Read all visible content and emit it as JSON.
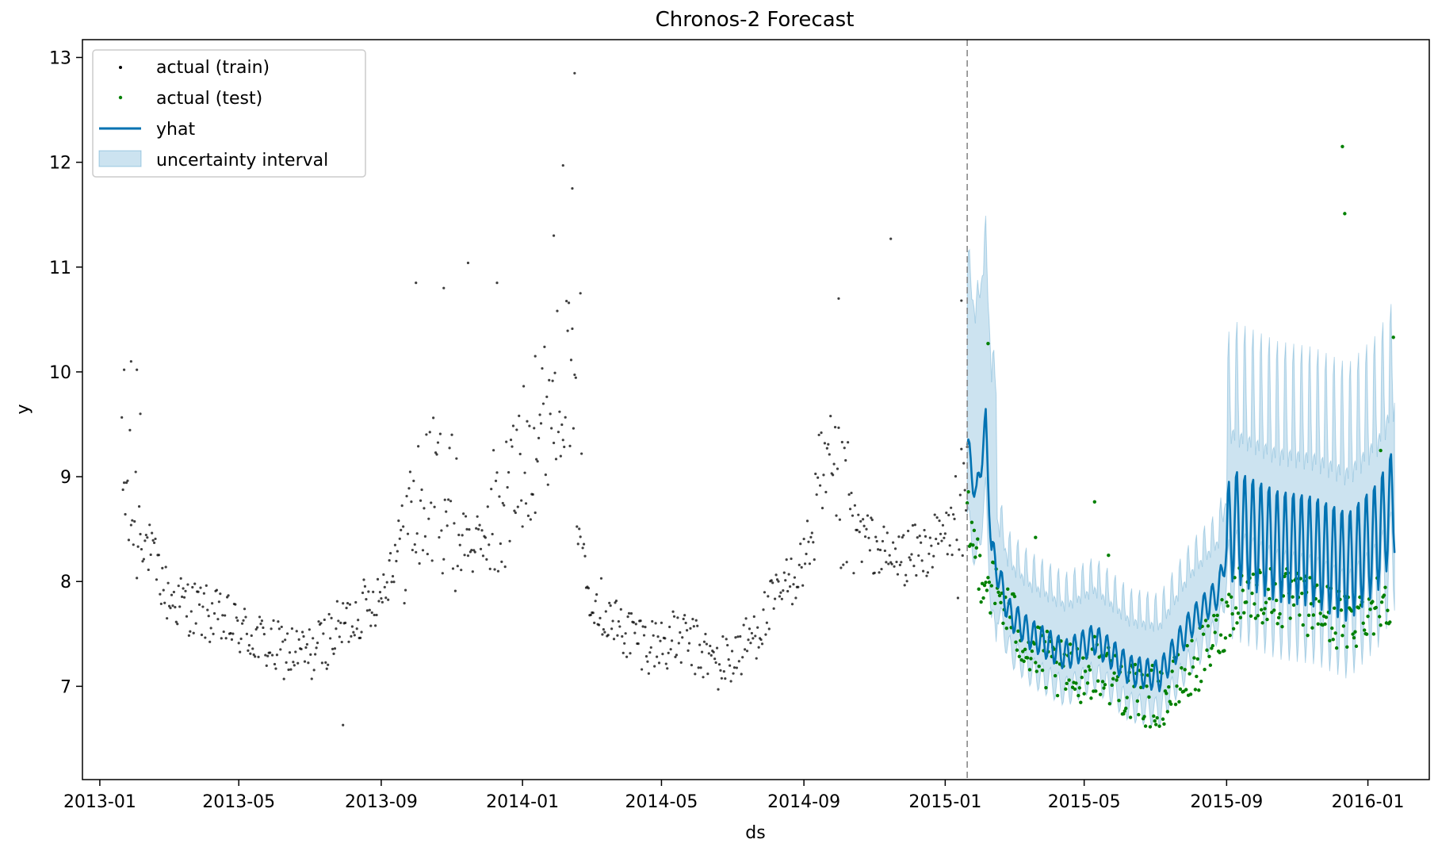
{
  "chart_data": {
    "type": "scatter",
    "title": "Chronos-2 Forecast",
    "xlabel": "ds",
    "ylabel": "y",
    "xlim": [
      "2012-12-17",
      "2016-02-23"
    ],
    "ylim": [
      6.11,
      13.17
    ],
    "x_ticks": [
      "2013-01",
      "2013-05",
      "2013-09",
      "2014-01",
      "2014-05",
      "2014-09",
      "2015-01",
      "2015-05",
      "2015-09",
      "2016-01"
    ],
    "y_ticks": [
      7,
      8,
      9,
      10,
      11,
      12,
      13
    ],
    "split_date": "2015-01-20",
    "grid": false,
    "legend_position": "upper-left",
    "legend": [
      {
        "label": "actual (train)",
        "marker": "dot",
        "color": "#000000"
      },
      {
        "label": "actual (test)",
        "marker": "dot",
        "color": "#008000"
      },
      {
        "label": "yhat",
        "marker": "line",
        "color": "#0072B2"
      },
      {
        "label": "uncertainty interval",
        "marker": "patch",
        "color": "#0072B2"
      }
    ],
    "colors": {
      "train": "#000000",
      "test": "#008000",
      "yhat": "#0072B2",
      "band": "#0072B2",
      "split_line": "#808080"
    },
    "train_anchors": [
      [
        "2013-01-20",
        8.9
      ],
      [
        "2013-02-05",
        8.5
      ],
      [
        "2013-03-01",
        7.85
      ],
      [
        "2013-04-01",
        7.7
      ],
      [
        "2013-05-01",
        7.55
      ],
      [
        "2013-06-01",
        7.35
      ],
      [
        "2013-07-01",
        7.3
      ],
      [
        "2013-08-01",
        7.6
      ],
      [
        "2013-09-01",
        7.9
      ],
      [
        "2013-09-20",
        8.5
      ],
      [
        "2013-10-20",
        8.9
      ],
      [
        "2013-11-20",
        8.3
      ],
      [
        "2013-12-15",
        8.7
      ],
      [
        "2014-01-20",
        9.6
      ],
      [
        "2014-02-10",
        10.1
      ],
      [
        "2014-02-25",
        8.0
      ],
      [
        "2014-03-20",
        7.6
      ],
      [
        "2014-04-20",
        7.4
      ],
      [
        "2014-05-20",
        7.45
      ],
      [
        "2014-06-20",
        7.2
      ],
      [
        "2014-07-10",
        7.35
      ],
      [
        "2014-08-10",
        7.85
      ],
      [
        "2014-09-01",
        8.2
      ],
      [
        "2014-09-20",
        8.9
      ],
      [
        "2014-10-15",
        8.5
      ],
      [
        "2014-11-15",
        8.2
      ],
      [
        "2014-12-15",
        8.3
      ],
      [
        "2015-01-20",
        8.6
      ]
    ],
    "train_outliers": [
      [
        "2013-01-22",
        10.02
      ],
      [
        "2013-01-28",
        10.1
      ],
      [
        "2013-02-02",
        10.02
      ],
      [
        "2013-02-05",
        9.6
      ],
      [
        "2013-07-30",
        6.63
      ],
      [
        "2013-10-01",
        10.85
      ],
      [
        "2013-10-25",
        10.8
      ],
      [
        "2013-11-15",
        11.04
      ],
      [
        "2013-12-10",
        10.85
      ],
      [
        "2014-01-12",
        10.15
      ],
      [
        "2014-01-28",
        11.3
      ],
      [
        "2014-02-05",
        11.97
      ],
      [
        "2014-02-15",
        12.85
      ],
      [
        "2014-02-13",
        11.75
      ],
      [
        "2014-02-20",
        10.75
      ],
      [
        "2014-10-01",
        10.7
      ],
      [
        "2014-11-15",
        11.27
      ],
      [
        "2015-01-15",
        10.68
      ]
    ],
    "test_anchors": [
      [
        "2015-01-20",
        8.6
      ],
      [
        "2015-02-01",
        8.1
      ],
      [
        "2015-02-20",
        7.8
      ],
      [
        "2015-03-15",
        7.35
      ],
      [
        "2015-04-15",
        7.1
      ],
      [
        "2015-05-15",
        7.2
      ],
      [
        "2015-06-15",
        6.9
      ],
      [
        "2015-07-10",
        6.9
      ],
      [
        "2015-08-01",
        7.15
      ],
      [
        "2015-08-25",
        7.5
      ],
      [
        "2015-09-10",
        7.9
      ],
      [
        "2015-10-15",
        7.85
      ],
      [
        "2015-11-15",
        7.75
      ],
      [
        "2015-12-15",
        7.6
      ],
      [
        "2016-01-20",
        7.9
      ]
    ],
    "test_outliers": [
      [
        "2015-02-07",
        10.27
      ],
      [
        "2015-05-10",
        8.76
      ],
      [
        "2015-05-22",
        8.25
      ],
      [
        "2015-12-10",
        12.15
      ],
      [
        "2015-12-12",
        11.51
      ],
      [
        "2016-01-23",
        10.33
      ],
      [
        "2016-01-12",
        9.25
      ],
      [
        "2015-03-20",
        8.42
      ]
    ],
    "yhat_anchors": [
      [
        "2015-01-20",
        9.3
      ],
      [
        "2015-01-28",
        8.8
      ],
      [
        "2015-02-05",
        9.5
      ],
      [
        "2015-02-10",
        8.3
      ],
      [
        "2015-02-25",
        7.7
      ],
      [
        "2015-03-15",
        7.5
      ],
      [
        "2015-04-15",
        7.3
      ],
      [
        "2015-05-10",
        7.45
      ],
      [
        "2015-06-10",
        7.15
      ],
      [
        "2015-07-05",
        7.1
      ],
      [
        "2015-08-01",
        7.6
      ],
      [
        "2015-08-25",
        7.9
      ],
      [
        "2015-09-05",
        8.55
      ],
      [
        "2015-10-15",
        8.35
      ],
      [
        "2015-11-15",
        8.3
      ],
      [
        "2015-12-15",
        8.15
      ],
      [
        "2016-01-10",
        8.45
      ],
      [
        "2016-01-24",
        8.8
      ]
    ]
  }
}
